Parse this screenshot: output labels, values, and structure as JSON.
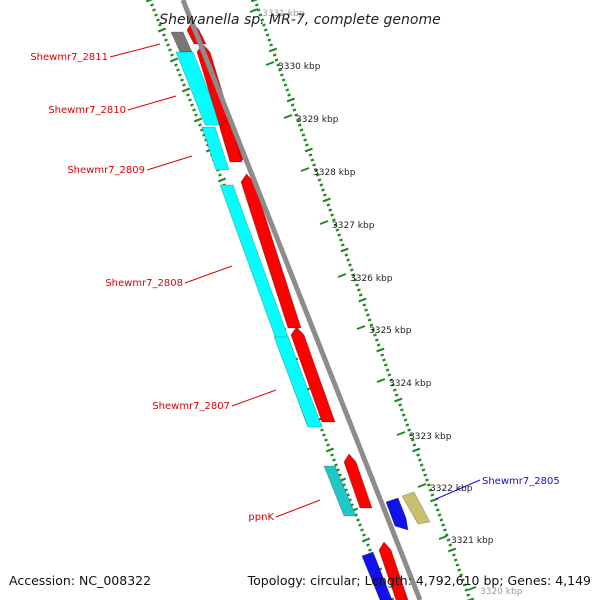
{
  "title": "Shewanella sp. MR-7, complete genome",
  "footer": {
    "accession": "Accession: NC_008322",
    "summary": "Topology: circular; Length: 4,792,610 bp; Genes: 4,149"
  },
  "colors": {
    "backbone": "#8c8c8c",
    "tick": "#228822",
    "forward": "#ff0000",
    "cds_light": "#00ffff",
    "cds_teal": "#1ec8c8",
    "grey_block": "#777777",
    "blue": "#1111ee",
    "olive": "#c8c070",
    "label_red": "#e00000",
    "label_blue": "#1010cc"
  },
  "kbp_labels": [
    "3331 kbp",
    "3330 kbp",
    "3329 kbp",
    "3328 kbp",
    "3327 kbp",
    "3326 kbp",
    "3325 kbp",
    "3324 kbp",
    "3323 kbp",
    "3322 kbp",
    "3321 kbp",
    "3320 kbp"
  ],
  "gene_labels": [
    {
      "name": "Shewmr7_2811",
      "color": "red"
    },
    {
      "name": "Shewmr7_2810",
      "color": "red"
    },
    {
      "name": "Shewmr7_2809",
      "color": "red"
    },
    {
      "name": "Shewmr7_2808",
      "color": "red"
    },
    {
      "name": "Shewmr7_2807",
      "color": "red"
    },
    {
      "name": "ppnK",
      "color": "red"
    },
    {
      "name": "Shewmr7_2805",
      "color": "blue"
    }
  ]
}
